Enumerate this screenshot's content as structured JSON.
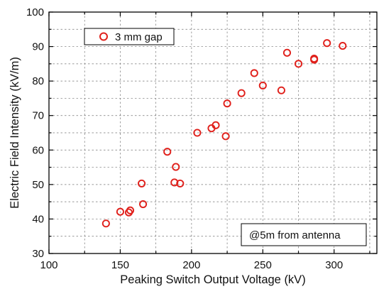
{
  "chart_data": {
    "type": "scatter",
    "xlabel": "Peaking Switch Output Voltage (kV)",
    "ylabel": "Electric Field Intensity (kV/m)",
    "xlim": [
      100,
      330
    ],
    "ylim": [
      30,
      100
    ],
    "x_ticks": [
      "100",
      "150",
      "200",
      "250",
      "300"
    ],
    "y_ticks": [
      "30",
      "40",
      "50",
      "60",
      "70",
      "80",
      "90",
      "100"
    ],
    "grid": true,
    "legend": "top-left",
    "annotation": "@5m from antenna",
    "marker_color": "#e0201b",
    "series": [
      {
        "name": "3 mm gap",
        "points": [
          [
            140,
            38.7
          ],
          [
            150,
            42.1
          ],
          [
            156,
            41.9
          ],
          [
            157,
            42.5
          ],
          [
            165,
            50.3
          ],
          [
            166,
            44.3
          ],
          [
            183,
            59.5
          ],
          [
            188,
            50.6
          ],
          [
            189,
            55.1
          ],
          [
            192,
            50.3
          ],
          [
            204,
            65.0
          ],
          [
            214,
            66.3
          ],
          [
            217,
            67.2
          ],
          [
            224,
            64.0
          ],
          [
            225,
            73.5
          ],
          [
            235,
            76.5
          ],
          [
            244,
            82.3
          ],
          [
            250,
            78.7
          ],
          [
            263,
            77.3
          ],
          [
            267,
            88.2
          ],
          [
            275,
            85.0
          ],
          [
            286,
            86.2
          ],
          [
            286,
            86.5
          ],
          [
            295,
            91.0
          ],
          [
            306,
            90.2
          ]
        ]
      }
    ]
  }
}
